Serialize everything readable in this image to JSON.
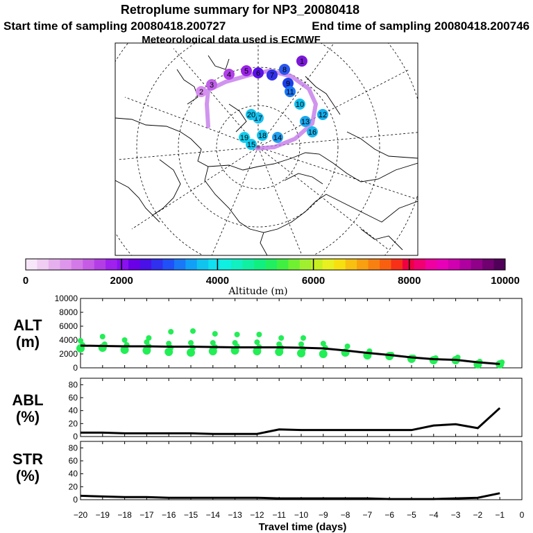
{
  "header": {
    "title": "Retroplume summary for NP3_20080418",
    "start_label": "Start time of sampling 20080418.200727",
    "end_label": "End time of sampling 20080418.200746",
    "met_label": "Meteorological data used is ECMWF"
  },
  "colorbar": {
    "label": "Altitude (m)",
    "ticks": [
      "0",
      "2000",
      "4000",
      "6000",
      "8000",
      "10000"
    ],
    "colors": [
      "#f6e6f8",
      "#f0cdf2",
      "#e6b0ee",
      "#de96ec",
      "#d47ae8",
      "#c65ce6",
      "#b43ee6",
      "#a020ee",
      "#8a10f0",
      "#6a00e8",
      "#4a10e8",
      "#3030f0",
      "#2050f8",
      "#1878f8",
      "#10a0f8",
      "#10c4f0",
      "#10e0f0",
      "#10f0e0",
      "#10f0c0",
      "#10f0a0",
      "#10f080",
      "#20f060",
      "#40f040",
      "#70f030",
      "#a0f030",
      "#c8f020",
      "#e8f020",
      "#f8e010",
      "#f8c010",
      "#f8a010",
      "#f88010",
      "#f86010",
      "#f83018",
      "#f00040",
      "#f00070",
      "#f000a0",
      "#e800b8",
      "#d000b0",
      "#b000a0",
      "#900088",
      "#700070",
      "#500058"
    ]
  },
  "chart_data": [
    {
      "type": "scatter",
      "panel": "ALT",
      "title": "ALT",
      "ylabel": "(m)",
      "xlabel": "Travel time (days)",
      "xlim": [
        -20,
        0
      ],
      "ylim": [
        0,
        10000
      ],
      "yticks": [
        0,
        2000,
        4000,
        6000,
        8000,
        10000
      ],
      "x": [
        -20,
        -19,
        -18,
        -17,
        -16,
        -15,
        -14,
        -13,
        -12,
        -11,
        -10,
        -9,
        -8,
        -7,
        -6,
        -5,
        -4,
        -3,
        -2,
        -1
      ],
      "mean_altitude": [
        3200,
        3150,
        3100,
        3100,
        3050,
        3050,
        3000,
        2950,
        2950,
        2950,
        2900,
        2800,
        2500,
        2150,
        1850,
        1500,
        1250,
        1150,
        800,
        550
      ],
      "cluster_altitudes": [
        [
          2800,
          3300,
          3900
        ],
        [
          2900,
          3400,
          4500
        ],
        [
          2600,
          3300,
          4000
        ],
        [
          2500,
          3100,
          3700,
          4300
        ],
        [
          2300,
          2900,
          3500,
          5200
        ],
        [
          2200,
          2900,
          3600,
          5300
        ],
        [
          2400,
          3000,
          3600,
          4900
        ],
        [
          2500,
          3100,
          3600,
          4800
        ],
        [
          2400,
          3000,
          3700,
          4800
        ],
        [
          2300,
          2900,
          3400,
          4300
        ],
        [
          2100,
          2700,
          3400,
          4300
        ],
        [
          2000,
          2900,
          3500
        ],
        [
          2200,
          3100
        ],
        [
          1800,
          2400
        ],
        [
          1700,
          1900
        ],
        [
          1300,
          1500
        ],
        [
          1100,
          1400
        ],
        [
          1100,
          1500
        ],
        [
          500,
          900
        ],
        [
          500,
          800
        ]
      ]
    },
    {
      "type": "line",
      "panel": "ABL",
      "title": "ABL",
      "ylabel": "(%)",
      "xlim": [
        -20,
        0
      ],
      "ylim": [
        0,
        90
      ],
      "yticks": [
        0,
        20,
        40,
        60,
        80
      ],
      "x": [
        -20,
        -19,
        -18,
        -17,
        -16,
        -15,
        -14,
        -13,
        -12,
        -11,
        -10,
        -9,
        -8,
        -7,
        -6,
        -5,
        -4,
        -3,
        -2,
        -1
      ],
      "values": [
        6,
        6,
        5,
        5,
        5,
        5,
        4,
        4,
        4,
        11,
        10,
        10,
        10,
        10,
        10,
        10,
        17,
        19,
        13,
        44
      ]
    },
    {
      "type": "line",
      "panel": "STR",
      "title": "STR",
      "ylabel": "(%)",
      "xlim": [
        -20,
        0
      ],
      "ylim": [
        0,
        90
      ],
      "yticks": [
        0,
        20,
        40,
        60,
        80
      ],
      "xticks": [
        "−20",
        "−19",
        "−18",
        "−17",
        "−16",
        "−15",
        "−14",
        "−13",
        "−12",
        "−11",
        "−10",
        "−9",
        "−8",
        "−7",
        "−6",
        "−5",
        "−4",
        "−3",
        "−2",
        "−1",
        "0"
      ],
      "x": [
        -20,
        -19,
        -18,
        -17,
        -16,
        -15,
        -14,
        -13,
        -12,
        -11,
        -10,
        -9,
        -8,
        -7,
        -6,
        -5,
        -4,
        -3,
        -2,
        -1
      ],
      "values": [
        6,
        5,
        4,
        4,
        3,
        3,
        3,
        3,
        3,
        2,
        2,
        2,
        2,
        2,
        1,
        1,
        1,
        2,
        3,
        10
      ]
    }
  ],
  "map_markers": [
    {
      "day": "1",
      "color": "#7a18d8"
    },
    {
      "day": "2",
      "color": "#d88ef0"
    },
    {
      "day": "3",
      "color": "#c060e8"
    },
    {
      "day": "4",
      "color": "#b040e8"
    },
    {
      "day": "5",
      "color": "#9a22e8"
    },
    {
      "day": "6",
      "color": "#5a10e8"
    },
    {
      "day": "7",
      "color": "#3030e8"
    },
    {
      "day": "8",
      "color": "#2a58f0"
    },
    {
      "day": "9",
      "color": "#1a40e8"
    },
    {
      "day": "10",
      "color": "#10c0f0"
    },
    {
      "day": "11",
      "color": "#1878f8"
    },
    {
      "day": "12",
      "color": "#10b0f0"
    },
    {
      "day": "13",
      "color": "#18a8f0"
    },
    {
      "day": "14",
      "color": "#20a0f0"
    },
    {
      "day": "15",
      "color": "#10c8f0"
    },
    {
      "day": "16",
      "color": "#18b8f0"
    },
    {
      "day": "17",
      "color": "#18c0f0"
    },
    {
      "day": "18",
      "color": "#10c4f0"
    },
    {
      "day": "19",
      "color": "#10d0f0"
    },
    {
      "day": "20",
      "color": "#10c4f0"
    }
  ]
}
